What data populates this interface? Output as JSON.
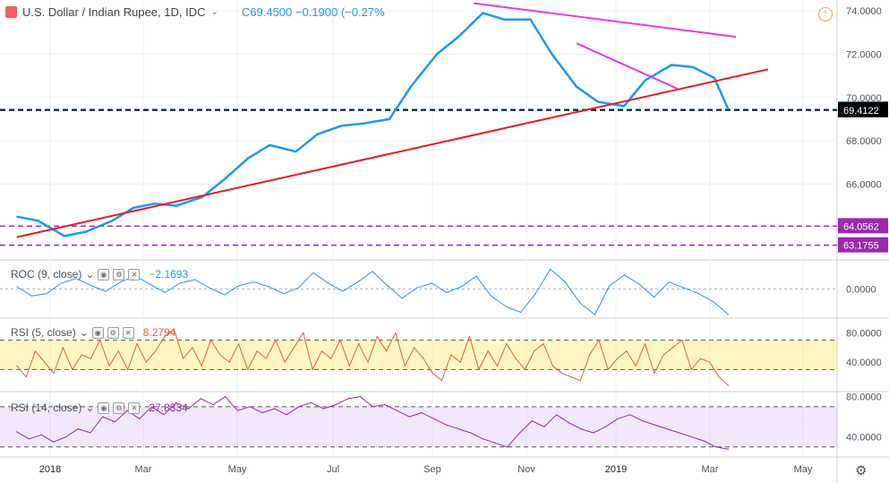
{
  "header": {
    "title": "U.S. Dollar / Indian Rupee, 1D, IDC",
    "close_label": "C",
    "close_value": "69.4500",
    "change": "−0.1900 (−0.27%",
    "colors": {
      "flag": "#f06060",
      "ohlc": "#2196f3"
    }
  },
  "icons": {
    "alert": "alert-icon",
    "settings": "gear-icon",
    "flag": "flag-icon",
    "chevron": "chevron-down-icon"
  },
  "panes": {
    "roc": {
      "label": "ROC (9, close)",
      "value": "−2.1693",
      "color": "#2196f3"
    },
    "rsi5": {
      "label": "RSI (5, close)",
      "value": "8.2794",
      "color": "#e0603c"
    },
    "rsi14": {
      "label": "RSI (14, close)",
      "value": "27.8334",
      "color": "#9c27b0"
    }
  },
  "chart_data": {
    "type": "line",
    "title": "U.S. Dollar / Indian Rupee, 1D, IDC",
    "x_axis_labels": [
      "2018",
      "Mar",
      "May",
      "Jul",
      "Sep",
      "Nov",
      "2019",
      "Mar",
      "May"
    ],
    "price": {
      "y_ticks": [
        "74.0000",
        "72.0000",
        "70.0000",
        "68.0000",
        "66.0000"
      ],
      "ylim": [
        62.5,
        74.5
      ],
      "series": [
        {
          "color": "#2196f3",
          "x": [
            "2017-12-01",
            "2017-12-15",
            "2018-01-01",
            "2018-01-15",
            "2018-02-01",
            "2018-02-15",
            "2018-03-01",
            "2018-03-15",
            "2018-04-01",
            "2018-04-15",
            "2018-05-01",
            "2018-05-15",
            "2018-06-01",
            "2018-06-15",
            "2018-07-01",
            "2018-07-15",
            "2018-08-01",
            "2018-08-15",
            "2018-09-01",
            "2018-09-15",
            "2018-10-01",
            "2018-10-15",
            "2018-11-01",
            "2018-11-15",
            "2018-12-01",
            "2018-12-15",
            "2019-01-01",
            "2019-01-15",
            "2019-02-01",
            "2019-02-15",
            "2019-03-01",
            "2019-03-10"
          ],
          "values": [
            64.5,
            64.3,
            63.6,
            63.8,
            64.3,
            64.9,
            65.1,
            65.0,
            65.4,
            66.2,
            67.2,
            67.8,
            67.5,
            68.3,
            68.7,
            68.8,
            69.0,
            70.5,
            72.0,
            72.8,
            73.9,
            73.6,
            73.6,
            72.0,
            70.5,
            69.8,
            69.6,
            70.8,
            71.5,
            71.4,
            70.9,
            69.45
          ]
        }
      ],
      "horizontal_lines": [
        {
          "value": 69.45,
          "label": "69.4500",
          "color": "#2196f3"
        },
        {
          "value": 69.4122,
          "label": "69.4122",
          "color": "#000000"
        },
        {
          "value": 64.0562,
          "label": "64.0562",
          "color": "#9c27b0"
        },
        {
          "value": 63.1755,
          "label": "63.1755",
          "color": "#9c27b0"
        }
      ],
      "trendlines": [
        {
          "color": "#e31c25",
          "from": [
            "2017-12-01",
            63.55
          ],
          "to": [
            "2019-04-05",
            71.3
          ]
        },
        {
          "color": "#e83cd8",
          "from": [
            "2018-09-25",
            74.35
          ],
          "to": [
            "2019-03-15",
            72.8
          ]
        },
        {
          "color": "#e83cd8",
          "from": [
            "2018-12-01",
            72.5
          ],
          "to": [
            "2019-02-05",
            70.4
          ]
        }
      ]
    },
    "roc": {
      "y_ticks": [
        "0.0000"
      ],
      "ylim": [
        -2.5,
        2.5
      ],
      "series": [
        {
          "color": "#2196f3",
          "x_range": [
            "2017-12-01",
            "2019-03-10"
          ],
          "values": [
            0.2,
            -0.6,
            -0.4,
            0.5,
            0.9,
            0.3,
            -0.2,
            0.6,
            1.1,
            0.4,
            -0.3,
            0.5,
            0.8,
            0.1,
            -0.5,
            0.3,
            0.6,
            0.2,
            -0.4,
            0.1,
            1.4,
            0.5,
            -0.2,
            0.6,
            1.5,
            0.3,
            -0.8,
            0.1,
            0.5,
            -0.3,
            0.2,
            1.1,
            -0.6,
            -1.5,
            -2.0,
            -0.4,
            1.7,
            0.6,
            -1.2,
            -2.2,
            0.3,
            1.2,
            0.4,
            -0.7,
            0.6,
            0.1,
            -0.4,
            -1.1,
            -2.17
          ]
        }
      ]
    },
    "rsi5": {
      "y_ticks": [
        "80.0000",
        "40.0000"
      ],
      "ylim": [
        0,
        100
      ],
      "band": [
        30,
        70
      ],
      "series": [
        {
          "color": "#e0603c",
          "x_range": [
            "2017-12-01",
            "2019-03-10"
          ],
          "values": [
            35,
            20,
            55,
            40,
            25,
            60,
            30,
            50,
            45,
            70,
            35,
            55,
            30,
            65,
            40,
            55,
            75,
            85,
            45,
            60,
            35,
            70,
            50,
            40,
            65,
            30,
            55,
            45,
            70,
            40,
            60,
            80,
            30,
            55,
            45,
            70,
            35,
            65,
            40,
            75,
            55,
            80,
            35,
            60,
            45,
            25,
            15,
            50,
            40,
            75,
            30,
            55,
            35,
            65,
            45,
            30,
            55,
            65,
            35,
            25,
            20,
            15,
            50,
            70,
            30,
            45,
            55,
            35,
            65,
            25,
            50,
            60,
            70,
            30,
            45,
            40,
            20,
            8.28
          ]
        }
      ]
    },
    "rsi14": {
      "y_ticks": [
        "80.0000",
        "40.0000"
      ],
      "ylim": [
        20,
        85
      ],
      "band": [
        30,
        70
      ],
      "series": [
        {
          "color": "#9c27b0",
          "x_range": [
            "2017-12-01",
            "2019-03-10"
          ],
          "values": [
            45,
            38,
            42,
            35,
            40,
            48,
            44,
            60,
            55,
            66,
            58,
            70,
            62,
            74,
            68,
            78,
            72,
            80,
            66,
            70,
            64,
            68,
            62,
            70,
            74,
            68,
            72,
            78,
            80,
            70,
            72,
            66,
            60,
            64,
            58,
            52,
            48,
            44,
            38,
            34,
            30,
            44,
            56,
            50,
            62,
            54,
            48,
            44,
            50,
            58,
            62,
            56,
            52,
            48,
            44,
            40,
            36,
            30,
            27.83
          ]
        }
      ]
    }
  }
}
